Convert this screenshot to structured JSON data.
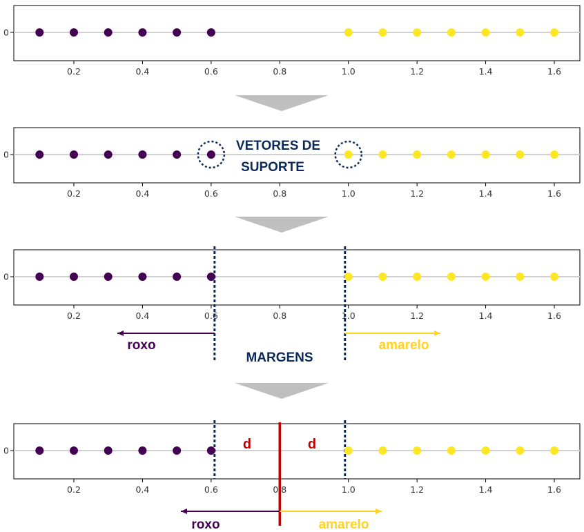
{
  "colors": {
    "purple": "#440154",
    "yellow": "#fde725",
    "navy": "#0b2a5a",
    "red": "#c00000",
    "baseline": "#d0d0d0",
    "axis": "#000000",
    "step_arrow": "#bfbfbf",
    "arrow_yellow": "#ffd320"
  },
  "chart_data": [
    {
      "type": "scatter",
      "x_ticks": [
        "0.2",
        "0.4",
        "0.6",
        "0.8",
        "1.0",
        "1.2",
        "1.4",
        "1.6"
      ],
      "y_ticks": [
        "0"
      ],
      "xlim": [
        0.0,
        1.67
      ],
      "series": [
        {
          "color": "#440154",
          "x": [
            0.1,
            0.2,
            0.3,
            0.4,
            0.5,
            0.6
          ],
          "y": [
            0,
            0,
            0,
            0,
            0,
            0
          ]
        },
        {
          "color": "#fde725",
          "x": [
            1.0,
            1.1,
            1.2,
            1.3,
            1.4,
            1.5,
            1.6
          ],
          "y": [
            0,
            0,
            0,
            0,
            0,
            0,
            0
          ]
        }
      ]
    },
    {
      "type": "scatter",
      "x_ticks": [
        "0.2",
        "0.4",
        "0.6",
        "0.8",
        "1.0",
        "1.2",
        "1.4",
        "1.6"
      ],
      "y_ticks": [
        "0"
      ],
      "xlim": [
        0.0,
        1.67
      ],
      "series": [
        {
          "color": "#440154",
          "x": [
            0.1,
            0.2,
            0.3,
            0.4,
            0.5,
            0.6
          ],
          "y": [
            0,
            0,
            0,
            0,
            0,
            0
          ]
        },
        {
          "color": "#fde725",
          "x": [
            1.0,
            1.1,
            1.2,
            1.3,
            1.4,
            1.5,
            1.6
          ],
          "y": [
            0,
            0,
            0,
            0,
            0,
            0,
            0
          ]
        }
      ],
      "highlighted_points": [
        0.6,
        1.0
      ],
      "annotation": "VETORES DE SUPORTE"
    },
    {
      "type": "scatter",
      "x_ticks": [
        "0.2",
        "0.4",
        "0.6",
        "0.8",
        "1.0",
        "1.2",
        "1.4",
        "1.6"
      ],
      "y_ticks": [
        "0"
      ],
      "xlim": [
        0.0,
        1.67
      ],
      "series": [
        {
          "color": "#440154",
          "x": [
            0.1,
            0.2,
            0.3,
            0.4,
            0.5,
            0.6
          ],
          "y": [
            0,
            0,
            0,
            0,
            0,
            0
          ]
        },
        {
          "color": "#fde725",
          "x": [
            1.0,
            1.1,
            1.2,
            1.3,
            1.4,
            1.5,
            1.6
          ],
          "y": [
            0,
            0,
            0,
            0,
            0,
            0,
            0
          ]
        }
      ],
      "margin_lines": [
        0.61,
        0.99
      ],
      "labels": {
        "left": "roxo",
        "center": "MARGENS",
        "right": "amarelo"
      }
    },
    {
      "type": "scatter",
      "x_ticks": [
        "0.2",
        "0.4",
        "0.6",
        "0.8",
        "1.0",
        "1.2",
        "1.4",
        "1.6"
      ],
      "y_ticks": [
        "0"
      ],
      "xlim": [
        0.0,
        1.67
      ],
      "series": [
        {
          "color": "#440154",
          "x": [
            0.1,
            0.2,
            0.3,
            0.4,
            0.5,
            0.6
          ],
          "y": [
            0,
            0,
            0,
            0,
            0,
            0
          ]
        },
        {
          "color": "#fde725",
          "x": [
            1.0,
            1.1,
            1.2,
            1.3,
            1.4,
            1.5,
            1.6
          ],
          "y": [
            0,
            0,
            0,
            0,
            0,
            0,
            0
          ]
        }
      ],
      "margin_lines": [
        0.61,
        0.99
      ],
      "decision_boundary": 0.8,
      "distance_label": "d",
      "labels": {
        "left": "roxo",
        "right": "amarelo"
      }
    }
  ]
}
